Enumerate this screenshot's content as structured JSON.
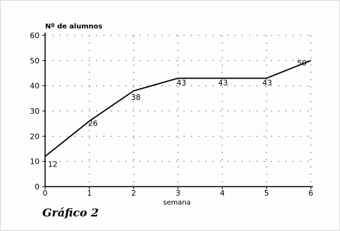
{
  "caption": "Gráfico 2",
  "chart_data": {
    "type": "line",
    "ylabel": "Nº de alumnos",
    "xlabel": "semana",
    "x": [
      0,
      1,
      2,
      3,
      4,
      5,
      6
    ],
    "xticks": [
      "0",
      "1",
      "2",
      "3",
      "4",
      "5",
      "6"
    ],
    "yticks": [
      "0",
      "10",
      "20",
      "30",
      "40",
      "50",
      "60"
    ],
    "xlim": [
      0,
      6
    ],
    "ylim": [
      0,
      60
    ],
    "series": [
      {
        "values": [
          12,
          26,
          38,
          43,
          43,
          43,
          50
        ]
      }
    ],
    "data_labels": [
      "12",
      "26",
      "38",
      "43",
      "43",
      "43",
      "50"
    ],
    "grid": "dotted",
    "line_color": "#000000"
  }
}
